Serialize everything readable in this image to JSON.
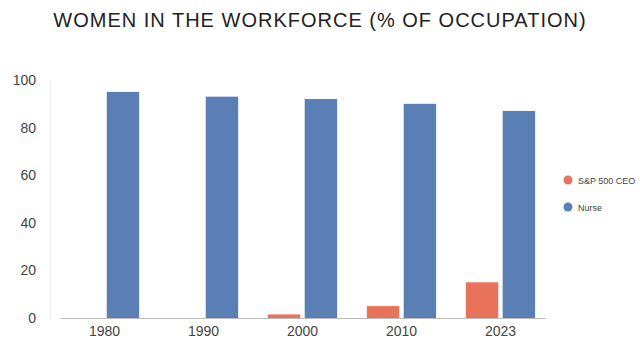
{
  "chart_data": {
    "type": "bar",
    "title": "WOMEN IN THE WORKFORCE (% OF OCCUPATION)",
    "categories": [
      "1980",
      "1990",
      "2000",
      "2010",
      "2023"
    ],
    "series": [
      {
        "name": "S&P 500 CEO",
        "color": "#e8735a",
        "values": [
          0,
          0,
          1.5,
          5,
          15
        ]
      },
      {
        "name": "Nurse",
        "color": "#5a7fb5",
        "values": [
          95,
          93,
          92,
          90,
          87
        ]
      }
    ],
    "ylim": [
      0,
      100
    ],
    "yticks": [
      0,
      20,
      40,
      60,
      80,
      100
    ],
    "grid": false,
    "legend": "right"
  }
}
